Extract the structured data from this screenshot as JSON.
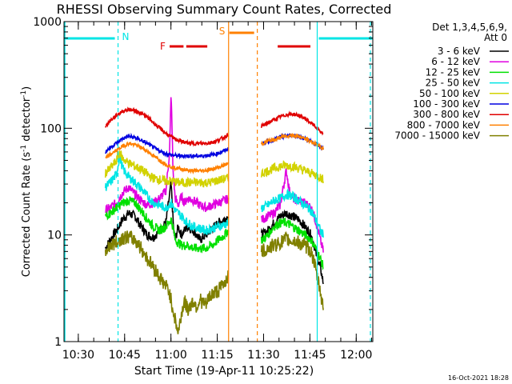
{
  "chart_data": {
    "type": "line",
    "title": "RHESSI Observing Summary Count Rates, Corrected",
    "xlabel": "Start Time (19-Apr-11 10:25:22)",
    "ylabel": "Corrected Count Rate (s",
    "ylabel_sup": "-1",
    "ylabel_mid": " detector",
    "ylabel_end": ")",
    "y_scale": "log",
    "ylim": [
      1,
      1000
    ],
    "xlim_minutes": [
      0,
      100
    ],
    "x_origin": "10:25:22",
    "x_ticks": [
      {
        "t": 4.63,
        "label": "10:30"
      },
      {
        "t": 19.63,
        "label": "10:45"
      },
      {
        "t": 34.63,
        "label": "11:00"
      },
      {
        "t": 49.63,
        "label": "11:15"
      },
      {
        "t": 64.63,
        "label": "11:30"
      },
      {
        "t": 79.63,
        "label": "11:45"
      },
      {
        "t": 94.63,
        "label": "12:00"
      }
    ],
    "y_ticks": [
      {
        "v": 1,
        "label": "1"
      },
      {
        "v": 10,
        "label": "10"
      },
      {
        "v": 100,
        "label": "100"
      },
      {
        "v": 1000,
        "label": "1000"
      }
    ],
    "legend_header": [
      "Det 1,3,4,5,6,9,",
      "Att 0"
    ],
    "legend_placement": "right",
    "timestamp": "16-Oct-2021 18:28",
    "flags": [
      {
        "label": "N",
        "color": "#00e5e5",
        "x_start": 0,
        "x_end": 17.5,
        "markers": [
          17.5,
          82
        ],
        "x_start2": 82,
        "x_end2": 100
      },
      {
        "label": "F",
        "color": "#e00000",
        "segments": [
          [
            34.2,
            38.7
          ],
          [
            39.6,
            46.4
          ],
          [
            69.2,
            79.8
          ]
        ]
      },
      {
        "label": "S",
        "color": "#ff8000",
        "segments": [
          [
            53.3,
            62.6
          ]
        ],
        "markers": [
          53.3,
          62.6
        ]
      }
    ],
    "gaps": [
      [
        53.3,
        63.8
      ]
    ],
    "series": [
      {
        "name": "3 - 6 keV",
        "color": "#000000",
        "t": [
          13.4,
          15,
          17,
          19,
          21,
          23,
          25,
          27,
          29,
          31,
          33,
          34.7,
          35.5,
          36,
          37,
          38,
          39,
          40,
          42,
          44,
          46,
          48,
          50,
          52,
          53.2,
          64.3,
          66,
          68,
          70,
          72,
          74,
          76,
          78,
          80,
          81,
          82,
          83,
          84
        ],
        "v": [
          7.5,
          9,
          11,
          14,
          16,
          15,
          12,
          10,
          9.5,
          11,
          13,
          30,
          11,
          9,
          12,
          10,
          11,
          12,
          11,
          9,
          10,
          11.5,
          13,
          14,
          15,
          10,
          11,
          13,
          15,
          16,
          15,
          14,
          12,
          10,
          8,
          6,
          5,
          3.5
        ]
      },
      {
        "name": "6 - 12 keV",
        "color": "#e000e0",
        "t": [
          13.4,
          15,
          17,
          19,
          21,
          23,
          25,
          27,
          29,
          31,
          33,
          34.2,
          34.7,
          35.3,
          36,
          37,
          38,
          39,
          40,
          42,
          44,
          46,
          48,
          50,
          52,
          53.2,
          64.3,
          66,
          68,
          70,
          71,
          72,
          73,
          74,
          76,
          78,
          80,
          81,
          82,
          83,
          84
        ],
        "v": [
          17,
          18,
          20,
          25,
          28,
          24,
          21,
          19,
          20,
          22,
          26,
          60,
          220,
          40,
          22,
          19,
          23,
          20,
          22,
          21,
          19,
          18,
          19,
          20,
          21,
          22,
          14,
          15,
          16,
          19,
          28,
          40,
          26,
          22,
          21,
          20,
          18,
          15,
          12,
          9,
          7
        ]
      },
      {
        "name": "12 - 25 keV",
        "color": "#00e000",
        "t": [
          13.4,
          15,
          17,
          19,
          21,
          23,
          25,
          27,
          29,
          31,
          33,
          34.7,
          35.5,
          36,
          38,
          40,
          42,
          44,
          46,
          48,
          50,
          52,
          53.2,
          64.3,
          66,
          68,
          70,
          72,
          74,
          76,
          78,
          80,
          81,
          82,
          83,
          84
        ],
        "v": [
          15,
          16,
          18,
          20,
          21,
          20,
          17,
          14,
          12,
          11,
          12,
          14,
          11,
          9,
          8,
          8,
          7.5,
          7.5,
          7.5,
          8,
          9,
          10,
          11,
          9,
          10,
          12,
          13,
          13,
          12,
          11,
          10,
          9,
          8,
          7,
          6,
          5
        ]
      },
      {
        "name": "25 - 50 keV",
        "color": "#00e5e5",
        "t": [
          13.4,
          15,
          17,
          18,
          19,
          20,
          21,
          23,
          25,
          27,
          29,
          31,
          33,
          34.7,
          36,
          38,
          40,
          42,
          44,
          46,
          48,
          50,
          52,
          53.2,
          64.3,
          66,
          68,
          70,
          72,
          74,
          76,
          78,
          80,
          81,
          82,
          83,
          84
        ],
        "v": [
          28,
          31,
          37,
          55,
          42,
          38,
          35,
          31,
          27,
          23,
          20,
          19,
          18,
          20,
          17,
          15,
          13,
          12,
          11.5,
          11,
          11.5,
          12,
          12.5,
          13,
          18,
          19,
          21,
          22,
          24,
          23,
          21,
          19,
          17,
          15,
          13,
          11,
          10
        ]
      },
      {
        "name": "50 - 100 keV",
        "color": "#d2d200",
        "t": [
          13.4,
          15,
          17,
          18,
          19,
          21,
          23,
          25,
          27,
          29,
          31,
          33,
          35,
          37,
          39,
          41,
          43,
          45,
          47,
          49,
          51,
          53.2,
          64.3,
          66,
          68,
          70,
          72,
          74,
          76,
          78,
          80,
          82,
          84
        ],
        "v": [
          38,
          42,
          50,
          60,
          52,
          47,
          44,
          41,
          37,
          34,
          33,
          32,
          32,
          31,
          31,
          31,
          31,
          31,
          31,
          32,
          33,
          34,
          38,
          40,
          42,
          44,
          45,
          44,
          42,
          40,
          38,
          36,
          33
        ]
      },
      {
        "name": "100 - 300 keV",
        "color": "#0000e0",
        "t": [
          13.4,
          15,
          17,
          19,
          21,
          23,
          25,
          27,
          29,
          31,
          33,
          35,
          37,
          39,
          41,
          43,
          45,
          47,
          49,
          51,
          53.2,
          64.3,
          66,
          68,
          70,
          72,
          74,
          76,
          78,
          80,
          82,
          84
        ],
        "v": [
          60,
          66,
          73,
          80,
          84,
          82,
          77,
          72,
          66,
          61,
          58,
          56,
          55,
          55,
          55,
          55,
          55,
          56,
          57,
          60,
          64,
          72,
          75,
          78,
          82,
          85,
          86,
          84,
          80,
          75,
          70,
          64
        ]
      },
      {
        "name": "300 - 800 keV",
        "color": "#e00000",
        "t": [
          13.4,
          15,
          17,
          19,
          21,
          23,
          25,
          27,
          29,
          31,
          33,
          35,
          37,
          39,
          41,
          43,
          45,
          47,
          49,
          51,
          53.2,
          64.3,
          66,
          68,
          70,
          72,
          74,
          76,
          78,
          80,
          82,
          84
        ],
        "v": [
          105,
          118,
          132,
          145,
          150,
          146,
          138,
          127,
          113,
          100,
          90,
          82,
          77,
          74,
          72,
          72,
          72,
          73,
          75,
          80,
          87,
          105,
          112,
          120,
          128,
          134,
          136,
          132,
          124,
          112,
          100,
          88
        ]
      },
      {
        "name": "800 - 7000 keV",
        "color": "#ff8000",
        "t": [
          13.4,
          15,
          17,
          19,
          21,
          23,
          25,
          27,
          29,
          31,
          33,
          35,
          37,
          39,
          41,
          43,
          45,
          47,
          49,
          51,
          53.2,
          64.3,
          66,
          68,
          70,
          72,
          74,
          76,
          78,
          80,
          82,
          84
        ],
        "v": [
          52,
          57,
          62,
          68,
          72,
          70,
          66,
          61,
          55,
          50,
          46,
          43,
          42,
          41,
          40,
          40,
          40,
          41,
          42,
          44,
          47,
          72,
          76,
          78,
          82,
          85,
          86,
          84,
          80,
          75,
          70,
          64
        ]
      },
      {
        "name": "7000 - 15000 keV",
        "color": "#808000",
        "t": [
          13.4,
          15,
          17,
          19,
          21,
          23,
          25,
          27,
          29,
          31,
          33,
          34,
          35,
          36,
          37,
          38,
          39,
          40,
          41,
          42,
          43,
          44,
          45,
          46,
          47,
          48,
          49,
          50,
          51,
          52,
          53.2,
          64.3,
          66,
          68,
          70,
          72,
          74,
          76,
          78,
          80,
          81,
          82,
          83,
          84
        ],
        "v": [
          7,
          8,
          8.5,
          9.5,
          9.5,
          9,
          7.5,
          6,
          5,
          4,
          3.3,
          3,
          2.2,
          1.6,
          1.2,
          1.8,
          2.4,
          2,
          2.2,
          2.4,
          2.1,
          2.5,
          2.3,
          2.2,
          2.6,
          2.8,
          2.9,
          3,
          3.3,
          3.6,
          4.2,
          7,
          7.5,
          8,
          8.5,
          9,
          8.8,
          8.5,
          8,
          7,
          5.5,
          4,
          3,
          2
        ]
      }
    ]
  }
}
